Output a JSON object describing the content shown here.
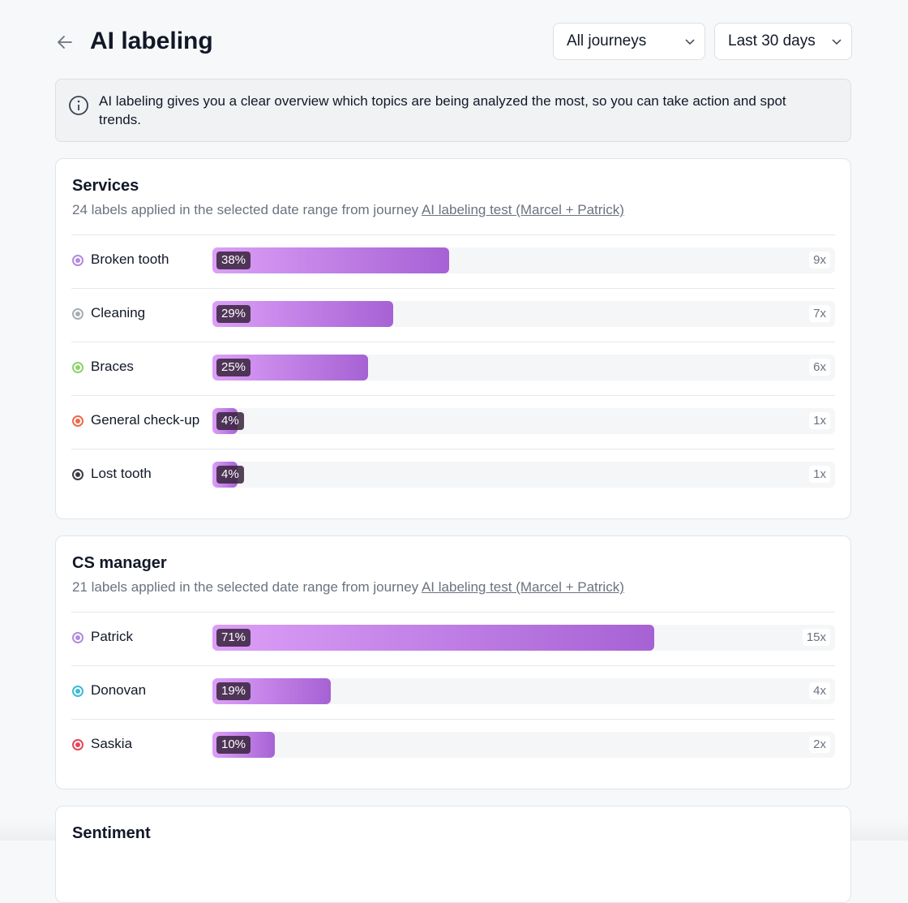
{
  "header": {
    "title": "AI labeling",
    "filters": [
      "All journeys",
      "Last 30 days"
    ]
  },
  "info": "AI labeling gives you a clear overview which topics are being analyzed the most, so you can take action and spot trends.",
  "sections": [
    {
      "title": "Services",
      "description": "24 labels applied in the selected date range from journey",
      "link": "AI labeling test (Marcel + Patrick)",
      "rows": [
        {
          "label": "Broken tooth",
          "color": "#b28ae0",
          "percent": 38,
          "percent_label": "38%",
          "count": "9x"
        },
        {
          "label": "Cleaning",
          "color": "#a9adb3",
          "percent": 29,
          "percent_label": "29%",
          "count": "7x"
        },
        {
          "label": "Braces",
          "color": "#8bd46a",
          "percent": 25,
          "percent_label": "25%",
          "count": "6x"
        },
        {
          "label": "General check-up",
          "color": "#ef6a4b",
          "percent": 4,
          "percent_label": "4%",
          "count": "1x"
        },
        {
          "label": "Lost tooth",
          "color": "#3a3d42",
          "percent": 4,
          "percent_label": "4%",
          "count": "1x"
        }
      ]
    },
    {
      "title": "CS manager",
      "description": "21 labels applied in the selected date range from journey",
      "link": "AI labeling test (Marcel + Patrick)",
      "rows": [
        {
          "label": "Patrick",
          "color": "#b28ae0",
          "percent": 71,
          "percent_label": "71%",
          "count": "15x"
        },
        {
          "label": "Donovan",
          "color": "#3bbcd9",
          "percent": 19,
          "percent_label": "19%",
          "count": "4x"
        },
        {
          "label": "Saskia",
          "color": "#e8445a",
          "percent": 10,
          "percent_label": "10%",
          "count": "2x"
        }
      ]
    },
    {
      "title": "Sentiment"
    }
  ]
}
